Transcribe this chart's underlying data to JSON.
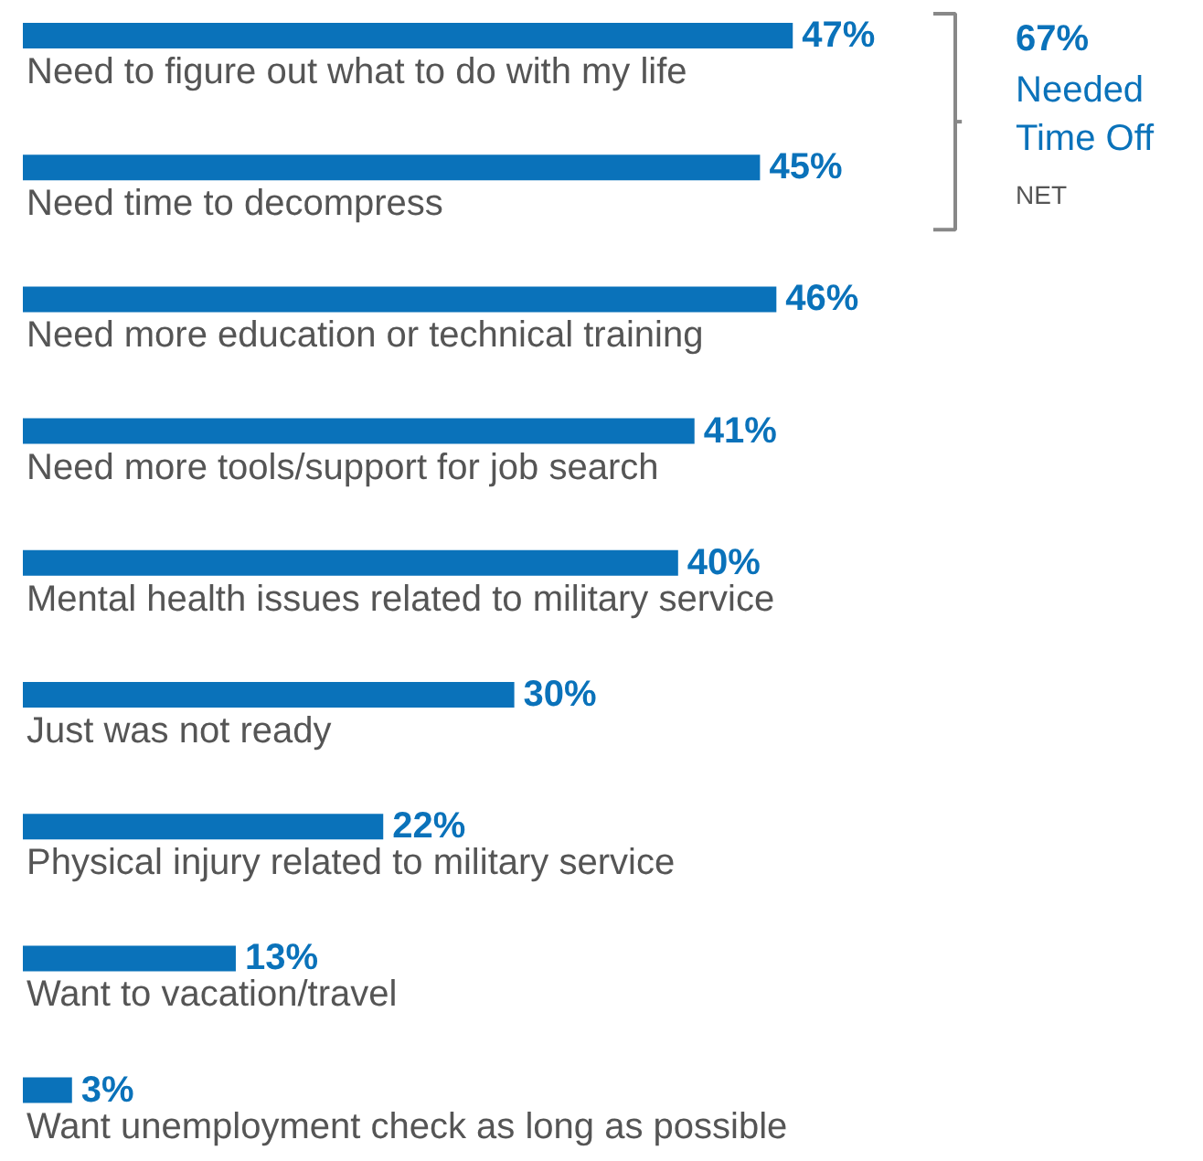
{
  "chart_data": {
    "type": "bar",
    "orientation": "horizontal",
    "categories": [
      "Need to figure out what to do with my life",
      "Need time to decompress",
      "Need more education or technical training",
      "Need more tools/support for job search",
      "Mental health issues related to military service",
      "Just was not ready",
      "Physical injury related to military service",
      "Want to vacation/travel",
      "Want unemployment check as long as possible"
    ],
    "values": [
      47,
      45,
      46,
      41,
      40,
      30,
      22,
      13,
      3
    ],
    "value_labels": [
      "47%",
      "45%",
      "46%",
      "41%",
      "40%",
      "30%",
      "22%",
      "13%",
      "3%"
    ],
    "color": "#0a72ba",
    "annotations": [
      "67%",
      "Needed Time Off",
      "NET"
    ]
  }
}
